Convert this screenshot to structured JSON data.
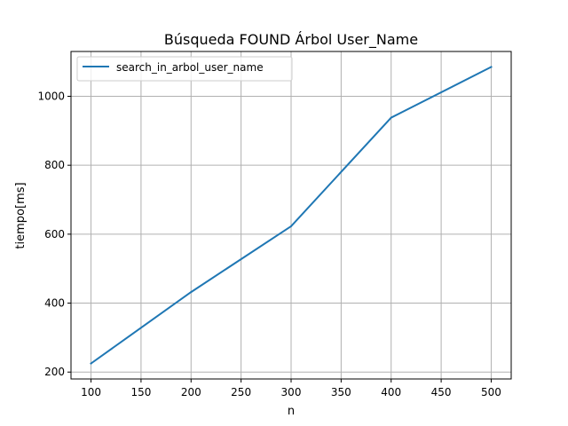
{
  "chart_data": {
    "type": "line",
    "title": "Búsqueda FOUND Árbol User_Name",
    "xlabel": "n",
    "ylabel": "tiempo[ms]",
    "x": [
      100,
      200,
      300,
      400,
      500
    ],
    "series": [
      {
        "name": "search_in_arbol_user_name",
        "values": [
          225,
          432,
          623,
          938,
          1085
        ],
        "color": "#1f77b4"
      }
    ],
    "xlim": [
      80,
      520
    ],
    "ylim": [
      180,
      1130
    ],
    "xticks": [
      100,
      150,
      200,
      250,
      300,
      350,
      400,
      450,
      500
    ],
    "yticks": [
      200,
      400,
      600,
      800,
      1000
    ],
    "grid": true,
    "legend_position": "top-left"
  }
}
